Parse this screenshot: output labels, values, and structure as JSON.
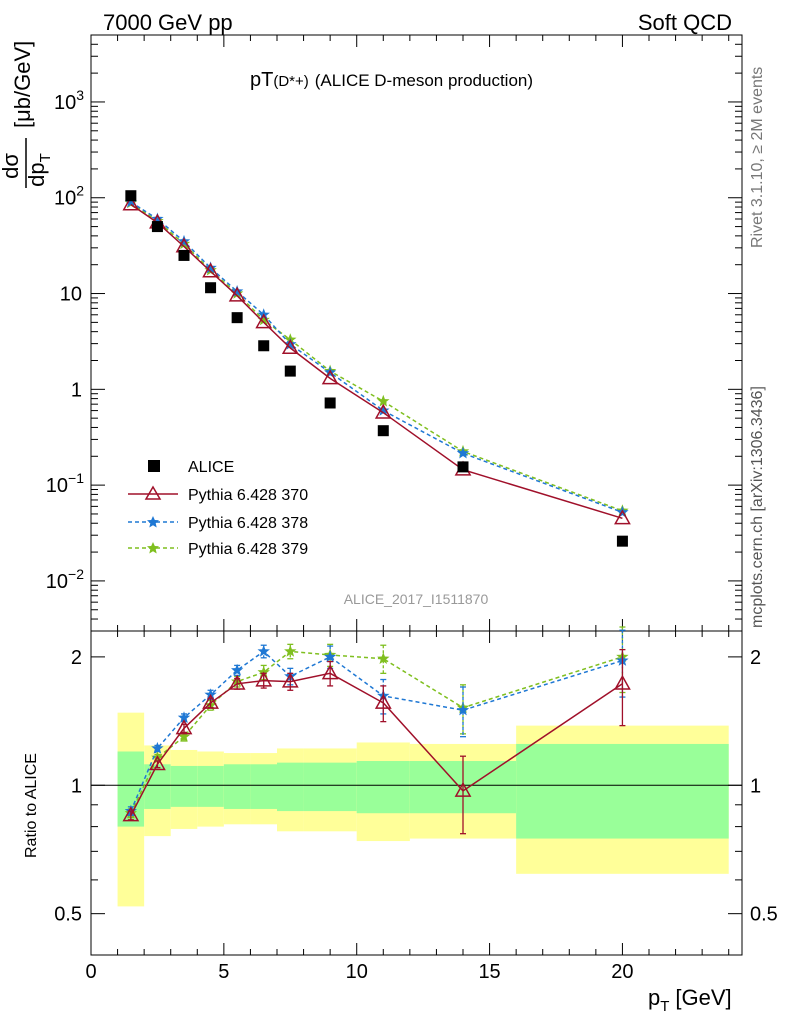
{
  "header": {
    "left": "7000 GeV pp",
    "right": "Soft QCD",
    "title_main": "pT",
    "title_sub": "(D*+)",
    "title_rest": "(ALICE D-meson production)",
    "side_top": "Rivet 3.1.10, ≥ 2M events",
    "side_bottom": "mcplots.cern.ch [arXiv:1306.3436]",
    "watermark": "ALICE_2017_I1511870",
    "ylabel_num": "dσ",
    "ylabel_den": "dp",
    "ylabel_den_sub": "T",
    "ylabel_unit": "[μb/GeV]",
    "ratio_ylabel": "Ratio to ALICE",
    "xlabel_main": "p",
    "xlabel_sub": "T",
    "xlabel_unit": "[GeV]"
  },
  "colors": {
    "data": "#000000",
    "p370": "#a0102a",
    "p378": "#1f78d4",
    "p379": "#7fbf1f",
    "band_inner": "#99ff99",
    "band_outer": "#ffff99"
  },
  "chart_data": {
    "type": "scatter",
    "x_label": "p_T [GeV]",
    "y_label": "dσ/dp_T [μb/GeV]",
    "x_range": [
      0,
      24.5
    ],
    "y_scale": "log",
    "y_range": [
      0.003,
      5000
    ],
    "y_ticks": [
      "10^-2",
      "10^-1",
      "1",
      "10",
      "10^2",
      "10^3"
    ],
    "x_ticks": [
      "0",
      "5",
      "10",
      "15",
      "20"
    ],
    "legend": [
      "ALICE",
      "Pythia 6.428 370",
      "Pythia 6.428 378",
      "Pythia 6.428 379"
    ],
    "legend_position": "left, lower half of main panel",
    "data": {
      "name": "ALICE",
      "x_low": [
        1,
        2,
        3,
        4,
        5,
        6,
        7,
        8,
        10,
        12,
        16
      ],
      "x_high": [
        2,
        3,
        4,
        5,
        6,
        7,
        8,
        10,
        12,
        16,
        24
      ],
      "x": [
        1.5,
        2.5,
        3.5,
        4.5,
        5.5,
        6.5,
        7.5,
        9,
        11,
        14,
        20
      ],
      "y": [
        105,
        50,
        25,
        11.5,
        5.6,
        2.85,
        1.55,
        0.72,
        0.37,
        0.155,
        0.026
      ],
      "rel_err_inner": [
        0.2,
        0.12,
        0.11,
        0.11,
        0.12,
        0.12,
        0.13,
        0.13,
        0.14,
        0.14,
        0.25
      ],
      "rel_err_outer": [
        0.48,
        0.24,
        0.21,
        0.2,
        0.19,
        0.19,
        0.22,
        0.22,
        0.26,
        0.25,
        0.38
      ]
    },
    "series": [
      {
        "name": "Pythia 6.428 370",
        "style": "solid",
        "marker": "triangle",
        "x": [
          1.5,
          2.5,
          3.5,
          4.5,
          5.5,
          6.5,
          7.5,
          9,
          11,
          14,
          20
        ],
        "y": [
          85,
          55,
          31,
          17,
          9.5,
          5,
          2.7,
          1.3,
          0.57,
          0.145,
          0.045
        ],
        "ratio": [
          0.85,
          1.12,
          1.36,
          1.56,
          1.73,
          1.76,
          1.75,
          1.83,
          1.56,
          0.97,
          1.73
        ],
        "ratio_err": [
          0.02,
          0.02,
          0.03,
          0.04,
          0.05,
          0.07,
          0.08,
          0.12,
          0.15,
          0.2,
          0.35
        ]
      },
      {
        "name": "Pythia 6.428 378",
        "style": "dashed",
        "marker": "star",
        "x": [
          1.5,
          2.5,
          3.5,
          4.5,
          5.5,
          6.5,
          7.5,
          9,
          11,
          14,
          20
        ],
        "y": [
          90,
          60,
          35,
          18.5,
          10.5,
          6,
          2.95,
          1.5,
          0.6,
          0.215,
          0.052
        ],
        "ratio": [
          0.87,
          1.22,
          1.44,
          1.63,
          1.86,
          2.06,
          1.8,
          2.0,
          1.62,
          1.5,
          1.96
        ],
        "ratio_err": [
          0.02,
          0.02,
          0.03,
          0.04,
          0.05,
          0.07,
          0.08,
          0.12,
          0.15,
          0.2,
          0.35
        ]
      },
      {
        "name": "Pythia 6.428 379",
        "style": "dashed",
        "marker": "star",
        "x": [
          1.5,
          2.5,
          3.5,
          4.5,
          5.5,
          6.5,
          7.5,
          9,
          11,
          14,
          20
        ],
        "y": [
          88,
          57,
          33,
          17.5,
          10,
          5.3,
          3.3,
          1.55,
          0.75,
          0.225,
          0.054
        ],
        "ratio": [
          0.86,
          1.16,
          1.3,
          1.54,
          1.75,
          1.84,
          2.06,
          2.02,
          1.98,
          1.52,
          2.0
        ],
        "ratio_err": [
          0.02,
          0.02,
          0.03,
          0.04,
          0.05,
          0.07,
          0.08,
          0.12,
          0.15,
          0.2,
          0.35
        ]
      }
    ],
    "ratio_panel": {
      "y_label": "Ratio to ALICE",
      "y_range": [
        0.4,
        2.3
      ],
      "y_ticks": [
        "0.5",
        "1",
        "2"
      ]
    }
  }
}
